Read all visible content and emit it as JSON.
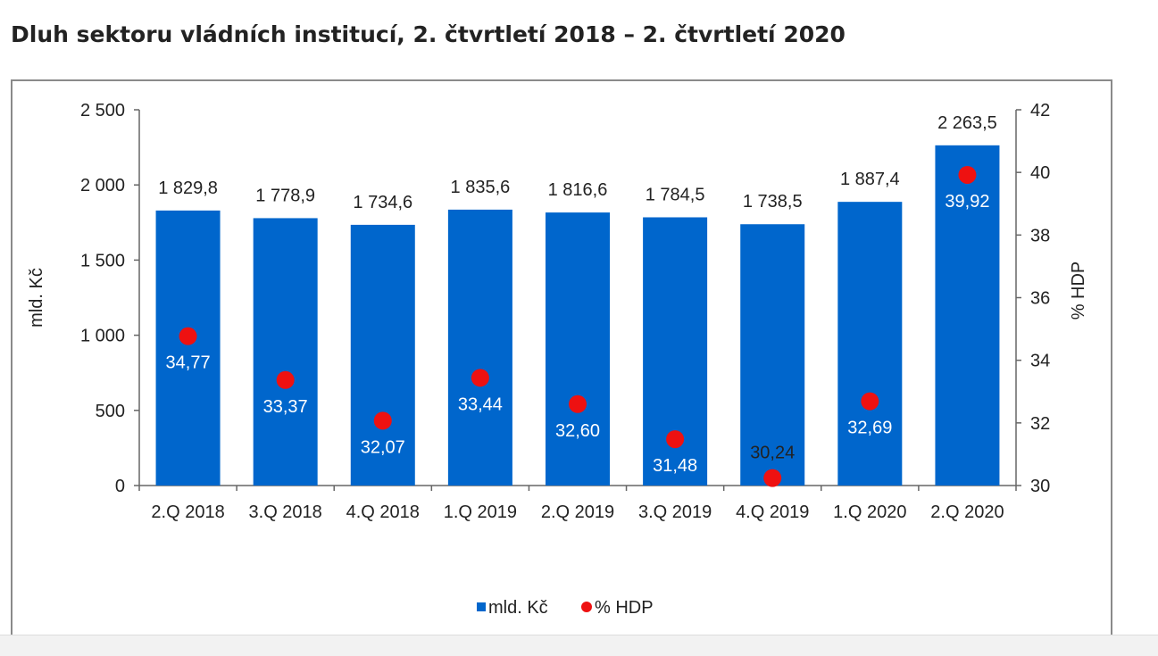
{
  "page": {
    "title": "Dluh sektoru vládních institucí, 2. čtvrtletí 2018 – 2. čtvrtletí 2020"
  },
  "chart_data": {
    "type": "bar",
    "categories": [
      "2.Q 2018",
      "3.Q 2018",
      "4.Q 2018",
      "1.Q 2019",
      "2.Q 2019",
      "3.Q 2019",
      "4.Q 2019",
      "1.Q 2020",
      "2.Q 2020"
    ],
    "series": [
      {
        "name": "mld. Kč",
        "type": "bar",
        "axis": "left",
        "color": "#0066cc",
        "values": [
          1829.8,
          1778.9,
          1734.6,
          1835.6,
          1816.6,
          1784.5,
          1738.5,
          1887.4,
          2263.5
        ],
        "labels": [
          "1 829,8",
          "1 778,9",
          "1 734,6",
          "1 835,6",
          "1 816,6",
          "1 784,5",
          "1 738,5",
          "1 887,4",
          "2 263,5"
        ]
      },
      {
        "name": "% HDP",
        "type": "scatter",
        "axis": "right",
        "color": "#ee1111",
        "values": [
          34.77,
          33.37,
          32.07,
          33.44,
          32.6,
          31.48,
          30.24,
          32.69,
          39.92
        ],
        "labels": [
          "34,77",
          "33,37",
          "32,07",
          "33,44",
          "32,60",
          "31,48",
          "30,24",
          "32,69",
          "39,92"
        ]
      }
    ],
    "y_left": {
      "label": "mld. Kč",
      "ylim": [
        0,
        2500
      ],
      "ticks": [
        0,
        500,
        1000,
        1500,
        2000,
        2500
      ],
      "tick_labels": [
        "0",
        "500",
        "1 000",
        "1 500",
        "2 000",
        "2 500"
      ]
    },
    "y_right": {
      "label": "% HDP",
      "ylim": [
        30,
        42
      ],
      "ticks": [
        30,
        32,
        34,
        36,
        38,
        40,
        42
      ],
      "tick_labels": [
        "30",
        "32",
        "34",
        "36",
        "38",
        "40",
        "42"
      ]
    },
    "legend": {
      "position": "bottom",
      "items": [
        "mld. Kč",
        "% HDP"
      ]
    },
    "grid": false
  }
}
